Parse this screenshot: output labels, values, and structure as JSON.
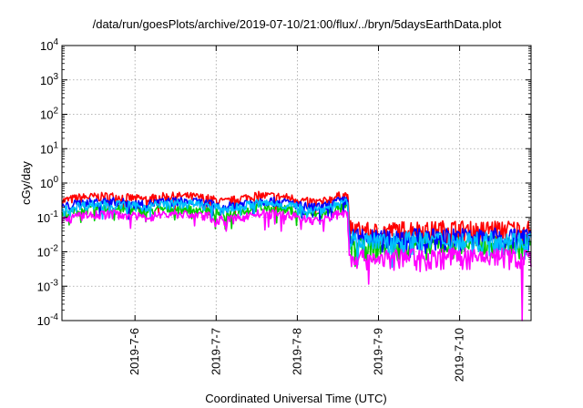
{
  "chart_data": {
    "type": "line",
    "title": "/data/run/goesPlots/archive/2019-07-10/21:00/flux/../bryn/5daysEarthData.plot",
    "xlabel": "Coordinated Universal Time (UTC)",
    "ylabel": "cGy/day",
    "yscale": "log",
    "ylim": [
      0.0001,
      10000
    ],
    "xlim": [
      5.1,
      10.88
    ],
    "grid": true,
    "y_ticks": [
      {
        "base": "10",
        "exp": "-4"
      },
      {
        "base": "10",
        "exp": "-3"
      },
      {
        "base": "10",
        "exp": "-2"
      },
      {
        "base": "10",
        "exp": "-1"
      },
      {
        "base": "10",
        "exp": "0"
      },
      {
        "base": "10",
        "exp": "1"
      },
      {
        "base": "10",
        "exp": "2"
      },
      {
        "base": "10",
        "exp": "3"
      },
      {
        "base": "10",
        "exp": "4"
      }
    ],
    "x_ticks": [
      {
        "label": "2019-7-6",
        "day": 6
      },
      {
        "label": "2019-7-7",
        "day": 7
      },
      {
        "label": "2019-7-8",
        "day": 8
      },
      {
        "label": "2019-7-9",
        "day": 9
      },
      {
        "label": "2019-7-10",
        "day": 10
      }
    ],
    "series": [
      {
        "color": "#ff0000",
        "x": [
          5.1,
          5.3,
          5.5,
          5.7,
          5.9,
          6.1,
          6.3,
          6.5,
          6.7,
          6.9,
          7.1,
          7.3,
          7.5,
          7.7,
          7.9,
          8.1,
          8.3,
          8.5,
          8.62,
          8.64,
          8.8,
          9.0,
          9.2,
          9.4,
          9.6,
          9.8,
          10.0,
          10.2,
          10.4,
          10.6,
          10.8,
          10.88
        ],
        "y": [
          0.3,
          0.38,
          0.4,
          0.42,
          0.38,
          0.34,
          0.4,
          0.42,
          0.41,
          0.36,
          0.28,
          0.36,
          0.44,
          0.42,
          0.38,
          0.3,
          0.28,
          0.42,
          0.46,
          0.05,
          0.045,
          0.04,
          0.045,
          0.05,
          0.045,
          0.05,
          0.05,
          0.045,
          0.05,
          0.05,
          0.045,
          0.05
        ]
      },
      {
        "color": "#00cc00",
        "x": [
          5.1,
          5.3,
          5.5,
          5.7,
          5.9,
          6.1,
          6.3,
          6.5,
          6.7,
          6.9,
          7.1,
          7.3,
          7.5,
          7.7,
          7.9,
          8.1,
          8.3,
          8.5,
          8.62,
          8.64,
          8.8,
          9.0,
          9.2,
          9.4,
          9.6,
          9.8,
          10.0,
          10.2,
          10.4,
          10.6,
          10.8,
          10.88
        ],
        "y": [
          0.12,
          0.16,
          0.18,
          0.18,
          0.17,
          0.15,
          0.17,
          0.18,
          0.18,
          0.16,
          0.12,
          0.15,
          0.19,
          0.18,
          0.17,
          0.13,
          0.12,
          0.18,
          0.2,
          0.018,
          0.016,
          0.015,
          0.017,
          0.018,
          0.016,
          0.018,
          0.018,
          0.016,
          0.018,
          0.018,
          0.016,
          0.018
        ]
      },
      {
        "color": "#0000ff",
        "x": [
          5.1,
          5.3,
          5.5,
          5.7,
          5.9,
          6.1,
          6.3,
          6.5,
          6.7,
          6.9,
          7.1,
          7.3,
          7.5,
          7.7,
          7.9,
          8.1,
          8.3,
          8.5,
          8.62,
          8.64,
          8.8,
          9.0,
          9.2,
          9.4,
          9.6,
          9.8,
          10.0,
          10.2,
          10.4,
          10.6,
          10.8,
          10.88
        ],
        "y": [
          0.2,
          0.26,
          0.28,
          0.3,
          0.27,
          0.24,
          0.28,
          0.3,
          0.29,
          0.26,
          0.2,
          0.25,
          0.31,
          0.3,
          0.27,
          0.21,
          0.2,
          0.3,
          0.32,
          0.03,
          0.028,
          0.026,
          0.028,
          0.03,
          0.028,
          0.03,
          0.03,
          0.028,
          0.03,
          0.03,
          0.028,
          0.03
        ]
      },
      {
        "color": "#ff00ff",
        "x": [
          5.1,
          5.3,
          5.5,
          5.7,
          5.9,
          6.1,
          6.3,
          6.5,
          6.7,
          6.9,
          7.1,
          7.3,
          7.5,
          7.7,
          7.9,
          8.1,
          8.3,
          8.5,
          8.62,
          8.64,
          8.8,
          9.0,
          9.2,
          9.4,
          9.6,
          9.8,
          10.0,
          10.2,
          10.4,
          10.6,
          10.76,
          10.77,
          10.78,
          10.8,
          10.88
        ],
        "y": [
          0.08,
          0.11,
          0.12,
          0.13,
          0.12,
          0.1,
          0.12,
          0.13,
          0.12,
          0.11,
          0.08,
          0.1,
          0.13,
          0.13,
          0.12,
          0.09,
          0.08,
          0.13,
          0.14,
          0.008,
          0.007,
          0.007,
          0.007,
          0.008,
          0.007,
          0.008,
          0.008,
          0.007,
          0.008,
          0.008,
          0.007,
          0.0001,
          0.007,
          0.007,
          0.008
        ]
      },
      {
        "color": "#00bfff",
        "x": [
          5.1,
          5.3,
          5.5,
          5.7,
          5.9,
          6.1,
          6.3,
          6.5,
          6.7,
          6.9,
          7.1,
          7.3,
          7.5,
          7.7,
          7.9,
          8.1,
          8.3,
          8.5,
          8.62,
          8.64,
          8.8,
          9.0,
          9.2,
          9.4,
          9.6,
          9.8,
          10.0,
          10.2,
          10.4,
          10.6,
          10.8,
          10.88
        ],
        "y": [
          0.16,
          0.22,
          0.24,
          0.25,
          0.23,
          0.2,
          0.24,
          0.25,
          0.25,
          0.22,
          0.17,
          0.21,
          0.26,
          0.25,
          0.23,
          0.18,
          0.17,
          0.25,
          0.27,
          0.024,
          0.022,
          0.021,
          0.022,
          0.024,
          0.022,
          0.024,
          0.024,
          0.022,
          0.024,
          0.024,
          0.022,
          0.024
        ]
      }
    ]
  }
}
